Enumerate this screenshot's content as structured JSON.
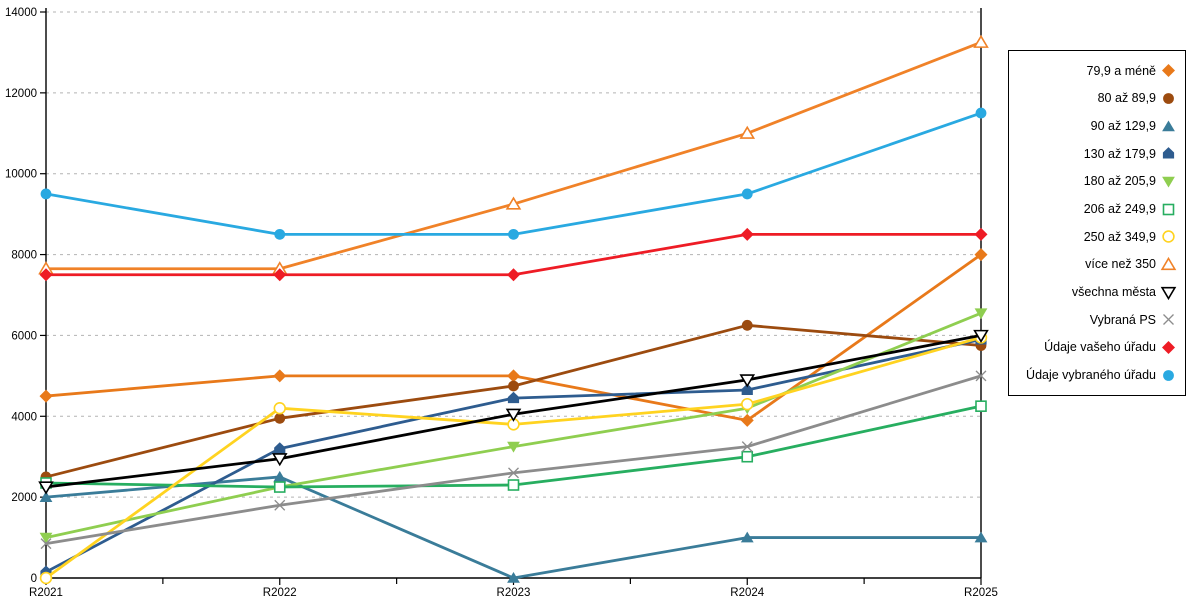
{
  "chart_data": {
    "type": "line",
    "title": "",
    "xlabel": "",
    "ylabel": "",
    "x": [
      "R2021",
      "R2022",
      "R2023",
      "R2024",
      "R2025"
    ],
    "ylim": [
      0,
      14000
    ],
    "y_tick_step": 2000,
    "y_tick_labels": [
      "0",
      "2000",
      "4000",
      "6000",
      "8000",
      "10000",
      "12000",
      "14000"
    ],
    "grid": "horizontal-dashed",
    "legend_position": "right",
    "series": [
      {
        "name": "79,9 a méně",
        "color": "#E8791A",
        "marker": "diamond",
        "marker_style": "solid",
        "values": [
          4500,
          5000,
          5000,
          3900,
          8000
        ]
      },
      {
        "name": "80 až 89,9",
        "color": "#9C4B0F",
        "marker": "circle",
        "marker_style": "solid",
        "values": [
          2500,
          3950,
          4750,
          6250,
          5750
        ]
      },
      {
        "name": "90 až 129,9",
        "color": "#3A7C99",
        "marker": "triangle-up",
        "marker_style": "solid",
        "values": [
          2000,
          2500,
          0,
          1000,
          1000
        ]
      },
      {
        "name": "130 až 179,9",
        "color": "#2E5C8F",
        "marker": "pentagon",
        "marker_style": "solid",
        "values": [
          150,
          3200,
          4450,
          4650,
          5900
        ]
      },
      {
        "name": "180 až 205,9",
        "color": "#8FCE50",
        "marker": "triangle-down",
        "marker_style": "solid",
        "values": [
          1000,
          2250,
          3250,
          4200,
          6550
        ]
      },
      {
        "name": "206 až 249,9",
        "color": "#27AE60",
        "marker": "square",
        "marker_style": "open",
        "values": [
          2350,
          2250,
          2300,
          3000,
          4250
        ]
      },
      {
        "name": "250 až 349,9",
        "color": "#FFD320",
        "marker": "circle",
        "marker_style": "open",
        "values": [
          0,
          4200,
          3800,
          4300,
          5950
        ]
      },
      {
        "name": "více než 350",
        "color": "#F08228",
        "marker": "triangle-up",
        "marker_style": "open",
        "values": [
          7650,
          7650,
          9250,
          11000,
          13250
        ]
      },
      {
        "name": "všechna města",
        "color": "#000000",
        "marker": "triangle-down",
        "marker_style": "open",
        "values": [
          2250,
          2950,
          4050,
          4900,
          6000
        ]
      },
      {
        "name": "Vybraná PS",
        "color": "#8C8C8C",
        "marker": "x",
        "marker_style": "open",
        "values": [
          850,
          1800,
          2600,
          3250,
          5000
        ]
      },
      {
        "name": "Údaje vašeho úřadu",
        "color": "#EE1C25",
        "marker": "diamond",
        "marker_style": "solid",
        "values": [
          7500,
          7500,
          7500,
          8500,
          8500
        ]
      },
      {
        "name": "Údaje vybraného úřadu",
        "color": "#29A9E1",
        "marker": "circle",
        "marker_style": "solid",
        "values": [
          9500,
          8500,
          8500,
          9500,
          11500
        ]
      }
    ]
  },
  "colors": {
    "background": "#ffffff",
    "axis": "#000000",
    "grid": "#b3b3b3",
    "tick_label": "#000000"
  }
}
